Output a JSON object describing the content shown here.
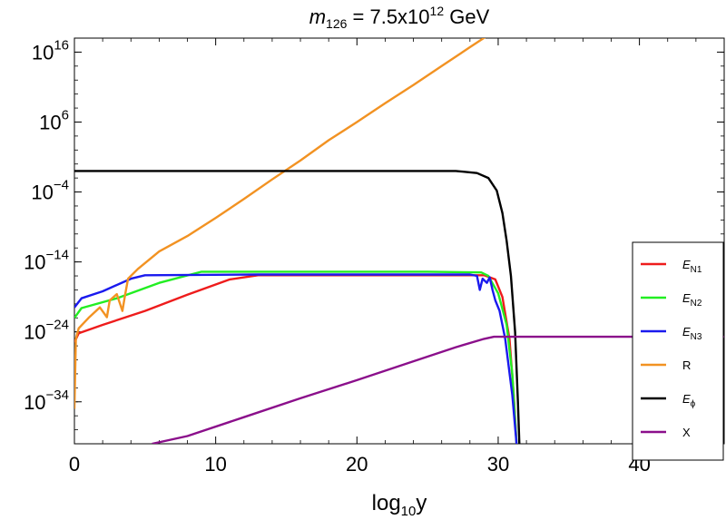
{
  "chart_data": {
    "type": "line",
    "title": {
      "base": "m",
      "sub": "126",
      "rest": " = 7.5x10",
      "sup": "12",
      "unit": " GeV"
    },
    "xlabel": {
      "base": "log",
      "sub": "10",
      "rest": "y"
    },
    "ylabel": "",
    "xlim": [
      0,
      46
    ],
    "y_scale": "log",
    "ylim_exponent": [
      -40,
      18
    ],
    "x_ticks": [
      "0",
      "10",
      "20",
      "30",
      "40"
    ],
    "y_ticks": [
      {
        "base": "10",
        "exp": "16"
      },
      {
        "base": "10",
        "exp": "6"
      },
      {
        "base": "10",
        "exp": "−4"
      },
      {
        "base": "10",
        "exp": "−14"
      },
      {
        "base": "10",
        "exp": "−24"
      },
      {
        "base": "10",
        "exp": "−34"
      }
    ],
    "legend_position": "right",
    "series": [
      {
        "name": "E",
        "sub": "N1",
        "color": "#ee1c1c",
        "points": [
          [
            0,
            -25.5
          ],
          [
            0.3,
            -24.2
          ],
          [
            2,
            -23
          ],
          [
            5,
            -21
          ],
          [
            8,
            -18.7
          ],
          [
            11,
            -16.5
          ],
          [
            13,
            -15.9
          ],
          [
            20,
            -15.9
          ],
          [
            29,
            -15.9
          ],
          [
            29.8,
            -16.5
          ],
          [
            30.3,
            -19
          ],
          [
            30.8,
            -25
          ],
          [
            31.1,
            -33
          ],
          [
            31.3,
            -40
          ]
        ]
      },
      {
        "name": "E",
        "sub": "N2",
        "color": "#22ee22",
        "points": [
          [
            0,
            -22
          ],
          [
            0.5,
            -20.6
          ],
          [
            3,
            -19.2
          ],
          [
            6,
            -17
          ],
          [
            9,
            -15.4
          ],
          [
            15,
            -15.4
          ],
          [
            25,
            -15.4
          ],
          [
            28.8,
            -15.5
          ],
          [
            29.3,
            -16
          ],
          [
            30,
            -18.5
          ],
          [
            30.6,
            -23
          ],
          [
            31,
            -30
          ],
          [
            31.3,
            -40
          ]
        ]
      },
      {
        "name": "E",
        "sub": "N3",
        "color": "#1a1aee",
        "points": [
          [
            0,
            -20.5
          ],
          [
            0.5,
            -19.2
          ],
          [
            2,
            -18.2
          ],
          [
            4,
            -16.4
          ],
          [
            5,
            -15.9
          ],
          [
            13,
            -15.8
          ],
          [
            28,
            -15.8
          ],
          [
            28.5,
            -16
          ],
          [
            28.7,
            -18
          ],
          [
            28.9,
            -16.4
          ],
          [
            29.2,
            -17
          ],
          [
            29.4,
            -16.2
          ],
          [
            29.6,
            -18
          ],
          [
            29.8,
            -19.5
          ],
          [
            30.1,
            -21
          ],
          [
            30.5,
            -25
          ],
          [
            31,
            -33
          ],
          [
            31.3,
            -40
          ]
        ]
      },
      {
        "name": "R",
        "sub": "",
        "color": "#f29222",
        "points": [
          [
            0,
            -35
          ],
          [
            0.1,
            -25
          ],
          [
            0.3,
            -23.5
          ],
          [
            1,
            -22
          ],
          [
            1.8,
            -20.5
          ],
          [
            2.3,
            -21.9
          ],
          [
            2.5,
            -19.5
          ],
          [
            3,
            -18.6
          ],
          [
            3.4,
            -21
          ],
          [
            3.6,
            -18.6
          ],
          [
            3.8,
            -16.4
          ],
          [
            4.5,
            -15
          ],
          [
            6,
            -12.5
          ],
          [
            8,
            -10.3
          ],
          [
            10,
            -7.7
          ],
          [
            12,
            -5
          ],
          [
            14,
            -2.2
          ],
          [
            16,
            0.5
          ],
          [
            18,
            3.4
          ],
          [
            20,
            6
          ],
          [
            22,
            8.7
          ],
          [
            24,
            11.3
          ],
          [
            26,
            14
          ],
          [
            28,
            16.7
          ],
          [
            29.5,
            18.7
          ],
          [
            30,
            19
          ],
          [
            46,
            19
          ]
        ]
      },
      {
        "name": "E",
        "sub": "ϕ",
        "color": "#000000",
        "points": [
          [
            0,
            -1
          ],
          [
            10,
            -1
          ],
          [
            20,
            -1
          ],
          [
            27,
            -1
          ],
          [
            28.5,
            -1.3
          ],
          [
            29.3,
            -2
          ],
          [
            29.9,
            -3.8
          ],
          [
            30.3,
            -7
          ],
          [
            30.6,
            -11
          ],
          [
            30.9,
            -16
          ],
          [
            31.2,
            -24
          ],
          [
            31.4,
            -34
          ],
          [
            31.5,
            -40
          ]
        ]
      },
      {
        "name": "X",
        "sub": "",
        "color": "#8b0f8b",
        "points": [
          [
            5.5,
            -40
          ],
          [
            8,
            -38.9
          ],
          [
            12,
            -36.2
          ],
          [
            16,
            -33.5
          ],
          [
            20,
            -30.9
          ],
          [
            24,
            -28.2
          ],
          [
            27,
            -26.2
          ],
          [
            29,
            -25
          ],
          [
            29.7,
            -24.7
          ],
          [
            30,
            -24.7
          ],
          [
            46,
            -24.7
          ]
        ]
      }
    ]
  }
}
